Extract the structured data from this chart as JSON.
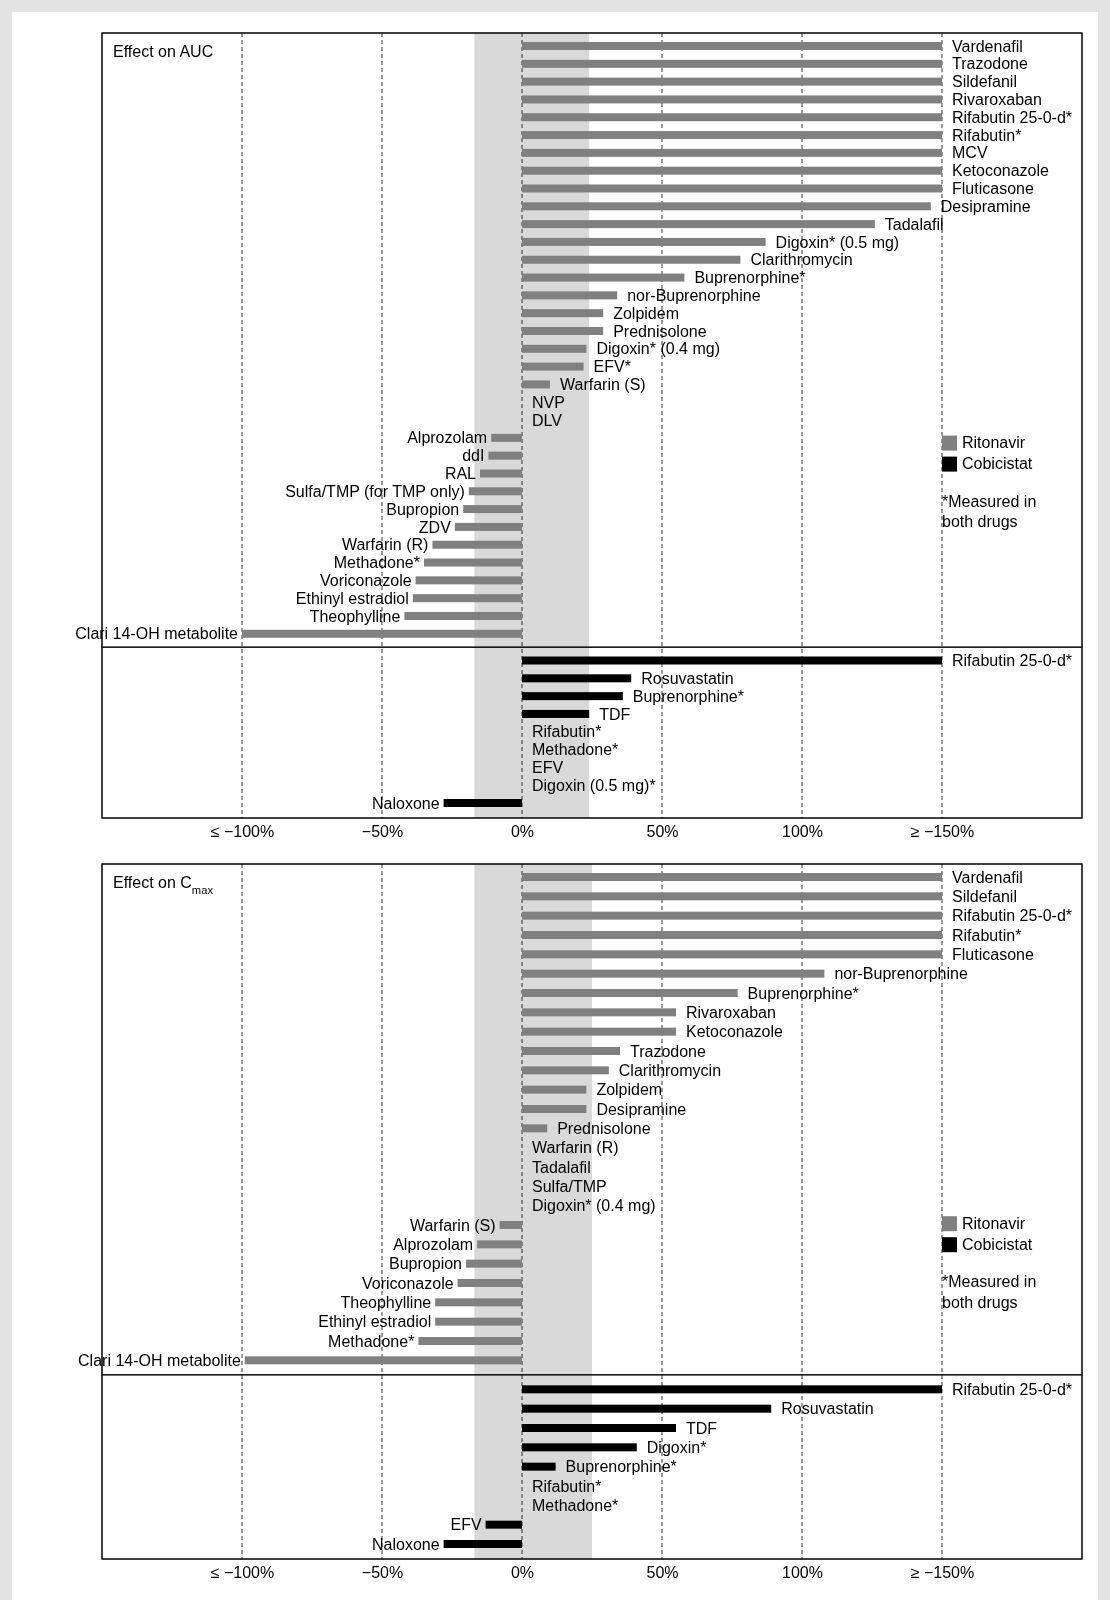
{
  "chart_data": [
    {
      "type": "bar",
      "orientation": "horizontal",
      "title": "Effect on AUC",
      "categories": [
        "Vardenafil",
        "Trazodone",
        "Sildefanil",
        "Rivaroxaban",
        "Rifabutin 25-0-d*",
        "Rifabutin*",
        "MCV",
        "Ketoconazole",
        "Fluticasone",
        "Desipramine",
        "Tadalafil",
        "Digoxin* (0.5 mg)",
        "Clarithromycin",
        "Buprenorphine*",
        "nor-Buprenorphine",
        "Zolpidem",
        "Prednisolone",
        "Digoxin* (0.4 mg)",
        "EFV*",
        "Warfarin (S)",
        "NVP",
        "DLV",
        "Alprozolam",
        "ddI",
        "RAL",
        "Sulfa/TMP (for TMP only)",
        "Bupropion",
        "ZDV",
        "Warfarin (R)",
        "Methadone*",
        "Voriconazole",
        "Ethinyl estradiol",
        "Theophylline",
        "Clari 14-OH metabolite",
        "Rifabutin 25-0-d*",
        "Rosuvastatin",
        "Buprenorphine*",
        "TDF",
        "Rifabutin*",
        "Methadone*",
        "EFV",
        "Digoxin (0.5 mg)*",
        "Naloxone"
      ],
      "series": [
        {
          "name": "Ritonavir",
          "color": "#808080",
          "values": [
            150,
            150,
            150,
            150,
            150,
            150,
            150,
            150,
            150,
            146,
            126,
            87,
            78,
            58,
            34,
            29,
            29,
            23,
            22,
            10,
            0,
            0,
            -11,
            -12,
            -15,
            -19,
            -21,
            -24,
            -32,
            -35,
            -38,
            -39,
            -42,
            -100,
            null,
            null,
            null,
            null,
            null,
            null,
            null,
            null,
            null
          ]
        },
        {
          "name": "Cobicistat",
          "color": "#000000",
          "values": [
            null,
            null,
            null,
            null,
            null,
            null,
            null,
            null,
            null,
            null,
            null,
            null,
            null,
            null,
            null,
            null,
            null,
            null,
            null,
            null,
            null,
            null,
            null,
            null,
            null,
            null,
            null,
            null,
            null,
            null,
            null,
            null,
            null,
            null,
            150,
            39,
            36,
            24,
            0,
            0,
            0,
            0,
            -28
          ]
        }
      ],
      "xlim": [
        -150,
        200
      ],
      "xticks": [
        {
          "value": -100,
          "label": "≤ −100%"
        },
        {
          "value": -50,
          "label": "−50%"
        },
        {
          "value": 0,
          "label": "0%"
        },
        {
          "value": 50,
          "label": "50%"
        },
        {
          "value": 100,
          "label": "100%"
        },
        {
          "value": 150,
          "label": "≥ −150%"
        }
      ],
      "grid": "x",
      "legend": "right",
      "bands": [
        {
          "axis": "x",
          "from": -17,
          "to": 24,
          "color": "#d9d9d9"
        }
      ],
      "annotations": [
        "*Measured in both drugs"
      ]
    },
    {
      "type": "bar",
      "orientation": "horizontal",
      "title": "Effect on C$_{max}$",
      "categories": [
        "Vardenafil",
        "Sildefanil",
        "Rifabutin 25-0-d*",
        "Rifabutin*",
        "Fluticasone",
        "nor-Buprenorphine",
        "Buprenorphine*",
        "Rivaroxaban",
        "Ketoconazole",
        "Trazodone",
        "Clarithromycin",
        "Zolpidem",
        "Desipramine",
        "Prednisolone",
        "Warfarin (R)",
        "Tadalafil",
        "Sulfa/TMP",
        "Digoxin* (0.4 mg)",
        "Warfarin (S)",
        "Alprozolam",
        "Bupropion",
        "Voriconazole",
        "Theophylline",
        "Ethinyl estradiol",
        "Methadone*",
        "Clari 14-OH metabolite",
        "Rifabutin 25-0-d*",
        "Rosuvastatin",
        "TDF",
        "Digoxin*",
        "Buprenorphine*",
        "Rifabutin*",
        "Methadone*",
        "EFV",
        "Naloxone"
      ],
      "series": [
        {
          "name": "Ritonavir",
          "color": "#808080",
          "values": [
            150,
            150,
            150,
            150,
            150,
            108,
            77,
            55,
            55,
            35,
            31,
            23,
            23,
            9,
            0,
            0,
            0,
            0,
            -8,
            -16,
            -20,
            -23,
            -31,
            -31,
            -37,
            -99,
            null,
            null,
            null,
            null,
            null,
            null,
            null,
            null,
            null
          ]
        },
        {
          "name": "Cobicistat",
          "color": "#000000",
          "values": [
            null,
            null,
            null,
            null,
            null,
            null,
            null,
            null,
            null,
            null,
            null,
            null,
            null,
            null,
            null,
            null,
            null,
            null,
            null,
            null,
            null,
            null,
            null,
            null,
            null,
            null,
            150,
            89,
            55,
            41,
            12,
            0,
            0,
            -13,
            -28
          ]
        }
      ],
      "xlim": [
        -150,
        200
      ],
      "xticks": [
        {
          "value": -100,
          "label": "≤ −100%"
        },
        {
          "value": -50,
          "label": "−50%"
        },
        {
          "value": 0,
          "label": "0%"
        },
        {
          "value": 50,
          "label": "50%"
        },
        {
          "value": 100,
          "label": "100%"
        },
        {
          "value": 150,
          "label": "≥ −150%"
        }
      ],
      "grid": "x",
      "legend": "right",
      "bands": [
        {
          "axis": "x",
          "from": -17,
          "to": 25,
          "color": "#d9d9d9"
        }
      ],
      "annotations": [
        "*Measured in both drugs"
      ]
    }
  ]
}
